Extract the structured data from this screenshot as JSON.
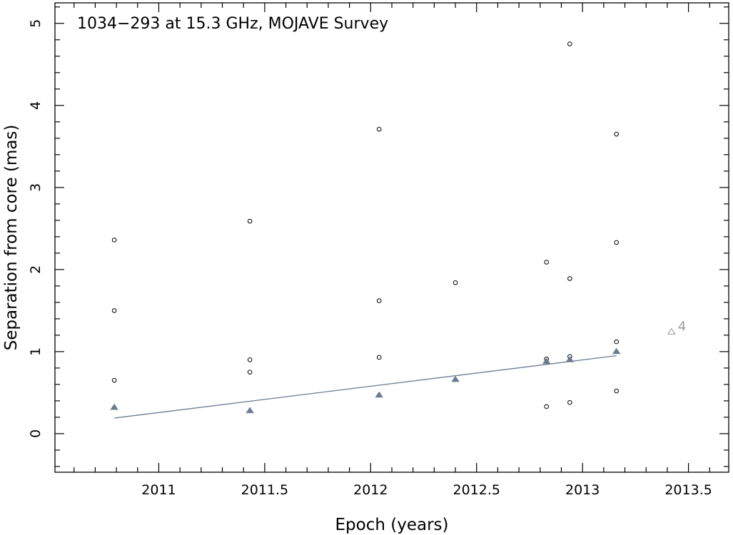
{
  "chart_data": {
    "type": "scatter",
    "title": "1034−293 at 15.3 GHz, MOJAVE Survey",
    "xlabel": "Epoch (years)",
    "ylabel": "Separation from core (mas)",
    "xlim": [
      2010.51,
      2013.69
    ],
    "ylim": [
      -0.47,
      5.25
    ],
    "x_ticks": [
      2011,
      2011.5,
      2012,
      2012.5,
      2013,
      2013.5
    ],
    "x_tick_labels": [
      "2011",
      "2011.5",
      "2012",
      "2012.5",
      "2013",
      "2013.5"
    ],
    "y_ticks": [
      0,
      1,
      2,
      3,
      4,
      5
    ],
    "y_tick_labels": [
      "0",
      "1",
      "2",
      "3",
      "4",
      "5"
    ],
    "grid": false,
    "colors": {
      "highlight": "#6b7c8f",
      "points": "#000000",
      "faded": "#999999"
    },
    "series": [
      {
        "marker": "open-circle",
        "points": [
          [
            2010.79,
            2.36
          ],
          [
            2010.79,
            1.5
          ],
          [
            2010.79,
            0.65
          ],
          [
            2011.43,
            2.59
          ],
          [
            2011.43,
            0.9
          ],
          [
            2011.43,
            0.75
          ],
          [
            2012.04,
            3.71
          ],
          [
            2012.04,
            1.62
          ],
          [
            2012.04,
            0.93
          ],
          [
            2012.4,
            1.84
          ],
          [
            2012.83,
            2.09
          ],
          [
            2012.83,
            0.91
          ],
          [
            2012.83,
            0.33
          ],
          [
            2012.94,
            4.75
          ],
          [
            2012.94,
            1.89
          ],
          [
            2012.94,
            0.94
          ],
          [
            2012.94,
            0.38
          ],
          [
            2013.16,
            3.65
          ],
          [
            2013.16,
            2.33
          ],
          [
            2013.16,
            1.12
          ],
          [
            2013.16,
            0.52
          ]
        ]
      },
      {
        "marker": "filled-triangle",
        "points": [
          [
            2010.79,
            0.32
          ],
          [
            2011.43,
            0.28
          ],
          [
            2012.04,
            0.47
          ],
          [
            2012.4,
            0.66
          ],
          [
            2012.83,
            0.88
          ],
          [
            2012.94,
            0.9
          ],
          [
            2013.16,
            1.0
          ]
        ]
      },
      {
        "marker": "open-triangle",
        "label": "4",
        "points": [
          [
            2013.42,
            1.24
          ]
        ]
      }
    ],
    "fit_line": {
      "x": [
        2010.79,
        2013.16
      ],
      "y": [
        0.19,
        0.95
      ]
    }
  }
}
